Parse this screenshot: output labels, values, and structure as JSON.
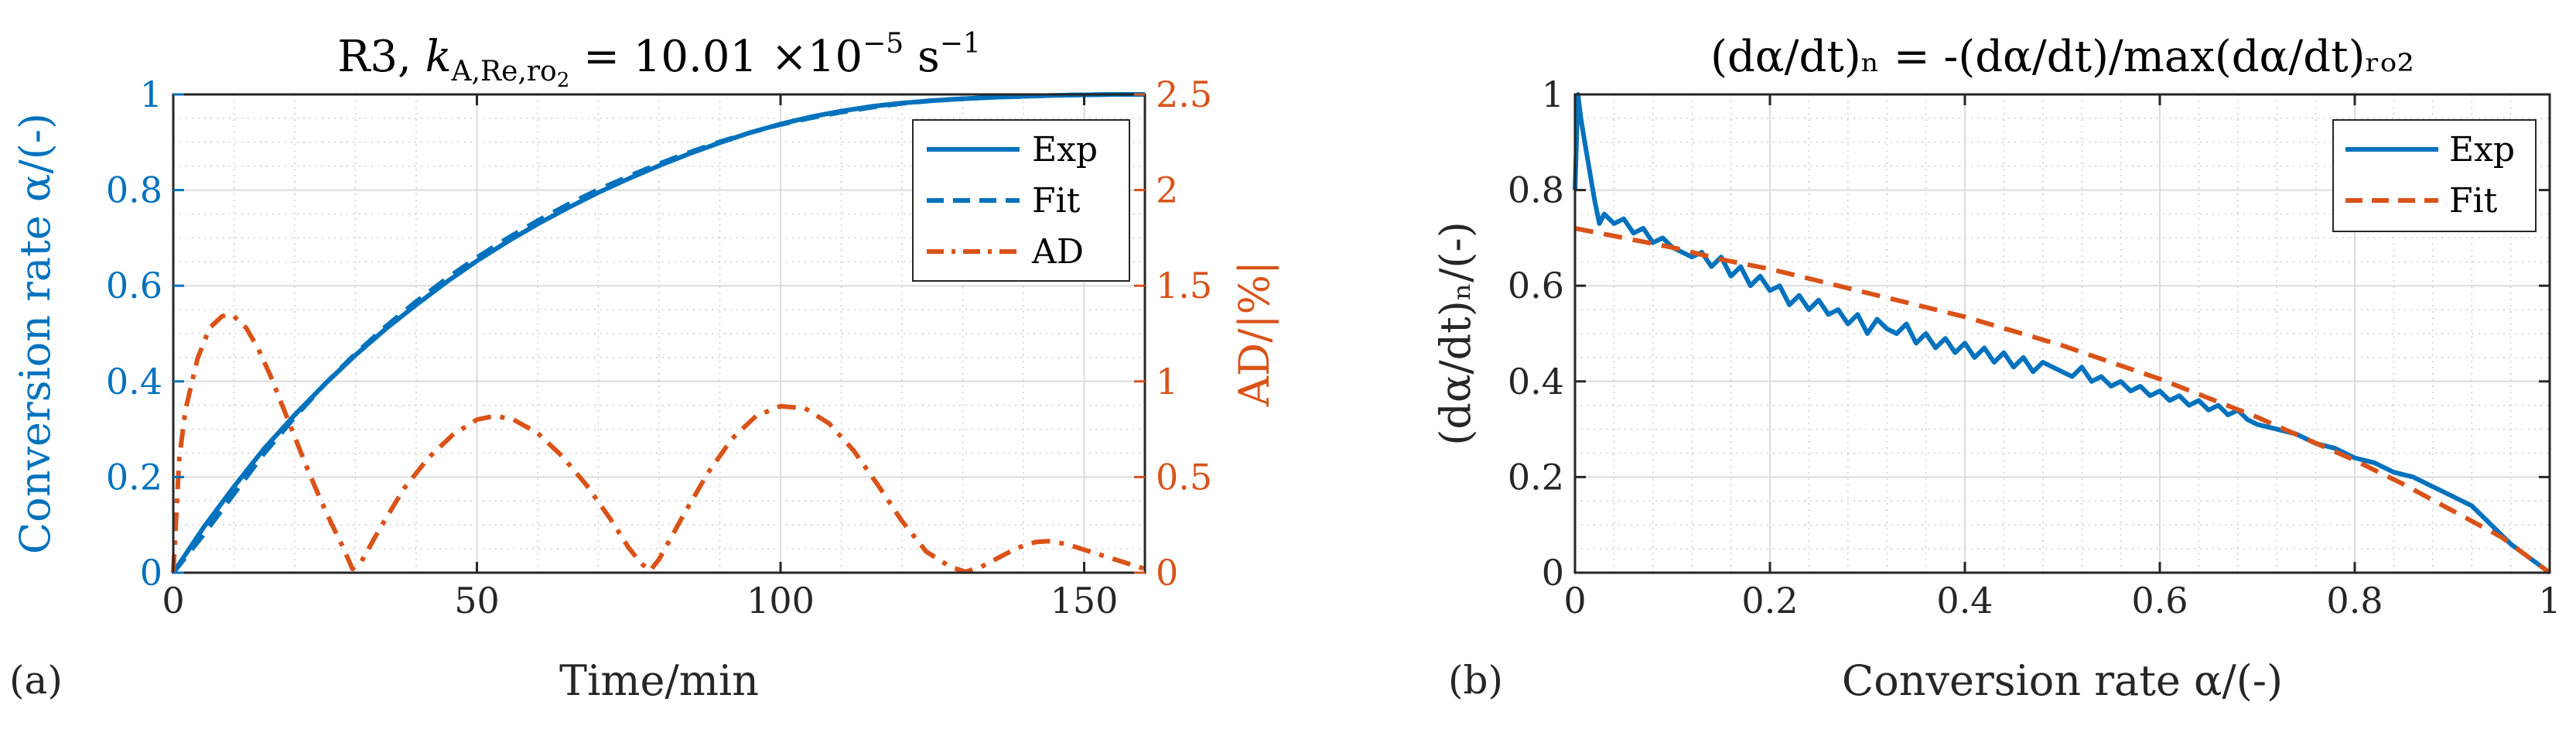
{
  "colors": {
    "blue": "#0072BD",
    "orange": "#D95319",
    "text": "#262626",
    "grid": "#c8c8c8"
  },
  "chart_data": [
    {
      "type": "line",
      "panel_label": "(a)",
      "title_parts": [
        "R3, ",
        "k",
        "A,Re,ro",
        "2",
        " = 10.01 ×10",
        "−5",
        " s",
        "−1"
      ],
      "xlabel": "Time/min",
      "ylabel_left": "Conversion rate α/(-)",
      "ylabel_right": "AD/|%|",
      "xlim": [
        0,
        160
      ],
      "ylim_left": [
        0,
        1
      ],
      "ylim_right": [
        0,
        2.5
      ],
      "xticks": [
        0,
        50,
        100,
        150
      ],
      "xtick_labels": [
        "0",
        "50",
        "100",
        "150"
      ],
      "yticks_left": [
        0,
        0.2,
        0.4,
        0.6,
        0.8,
        1
      ],
      "ytick_labels_left": [
        "0",
        "0.2",
        "0.4",
        "0.6",
        "0.8",
        "1"
      ],
      "yticks_right": [
        0,
        0.5,
        1,
        1.5,
        2,
        2.5
      ],
      "ytick_labels_right": [
        "0",
        "0.5",
        "1",
        "1.5",
        "2",
        "2.5"
      ],
      "grid": true,
      "legend_position": "top-right",
      "series": [
        {
          "name": "Exp",
          "axis": "left",
          "style": "solid",
          "color": "#0072BD",
          "x": [
            0,
            5,
            10,
            15,
            20,
            25,
            30,
            35,
            40,
            45,
            50,
            55,
            60,
            65,
            70,
            75,
            80,
            85,
            90,
            95,
            100,
            105,
            110,
            115,
            120,
            125,
            130,
            135,
            140,
            145,
            150,
            155,
            160
          ],
          "y": [
            0,
            0.095,
            0.18,
            0.26,
            0.33,
            0.395,
            0.455,
            0.51,
            0.56,
            0.608,
            0.652,
            0.692,
            0.729,
            0.763,
            0.795,
            0.824,
            0.851,
            0.876,
            0.899,
            0.92,
            0.938,
            0.953,
            0.965,
            0.975,
            0.982,
            0.987,
            0.991,
            0.994,
            0.996,
            0.998,
            0.999,
            1.0,
            1.0
          ]
        },
        {
          "name": "Fit",
          "axis": "left",
          "style": "dashed",
          "color": "#0072BD",
          "x": [
            0,
            5,
            10,
            15,
            20,
            25,
            30,
            35,
            40,
            45,
            50,
            55,
            60,
            65,
            70,
            75,
            80,
            85,
            90,
            95,
            100,
            105,
            110,
            115,
            120,
            125,
            130,
            135,
            140,
            145,
            150,
            155,
            160
          ],
          "y": [
            0,
            0.08,
            0.165,
            0.25,
            0.325,
            0.395,
            0.458,
            0.515,
            0.567,
            0.615,
            0.659,
            0.699,
            0.736,
            0.77,
            0.801,
            0.829,
            0.855,
            0.879,
            0.901,
            0.92,
            0.937,
            0.951,
            0.963,
            0.973,
            0.981,
            0.987,
            0.991,
            0.994,
            0.996,
            0.998,
            0.999,
            1.0,
            1.0
          ]
        },
        {
          "name": "AD",
          "axis": "right",
          "style": "dashdot",
          "color": "#D95319",
          "x": [
            0,
            1,
            2,
            4,
            6,
            8,
            9,
            10,
            12,
            14,
            16,
            18,
            20,
            22,
            24,
            26,
            28,
            29.5,
            31,
            34,
            38,
            42,
            46,
            50,
            53,
            56,
            60,
            64,
            68,
            72,
            75,
            77,
            78.5,
            80,
            84,
            88,
            92,
            96,
            100,
            104,
            108,
            112,
            116,
            120,
            124,
            128,
            130.5,
            133,
            136,
            139,
            142,
            144,
            147,
            150,
            154,
            158,
            160
          ],
          "y": [
            0,
            0.6,
            0.85,
            1.12,
            1.28,
            1.34,
            1.35,
            1.34,
            1.28,
            1.17,
            1.03,
            0.87,
            0.71,
            0.55,
            0.4,
            0.26,
            0.13,
            0.02,
            0.06,
            0.23,
            0.44,
            0.6,
            0.72,
            0.8,
            0.82,
            0.8,
            0.73,
            0.61,
            0.46,
            0.28,
            0.13,
            0.05,
            0.01,
            0.07,
            0.3,
            0.52,
            0.7,
            0.82,
            0.87,
            0.86,
            0.78,
            0.64,
            0.46,
            0.27,
            0.11,
            0.03,
            0.005,
            0.03,
            0.08,
            0.13,
            0.16,
            0.165,
            0.15,
            0.12,
            0.08,
            0.04,
            0.02
          ]
        }
      ]
    },
    {
      "type": "line",
      "panel_label": "(b)",
      "title": "(dα/dt)ₙ = -(dα/dt)/max(dα/dt)ᵣₒ₂",
      "xlabel": "Conversion rate α/(-)",
      "ylabel": "(dα/dt)ₙ/(-)",
      "xlim": [
        0,
        1
      ],
      "ylim": [
        0,
        1
      ],
      "xticks": [
        0,
        0.2,
        0.4,
        0.6,
        0.8,
        1
      ],
      "xtick_labels": [
        "0",
        "0.2",
        "0.4",
        "0.6",
        "0.8",
        "1"
      ],
      "yticks": [
        0,
        0.2,
        0.4,
        0.6,
        0.8,
        1
      ],
      "ytick_labels": [
        "0",
        "0.2",
        "0.4",
        "0.6",
        "0.8",
        "1"
      ],
      "grid": true,
      "legend_position": "top-right",
      "series": [
        {
          "name": "Exp",
          "style": "solid",
          "color": "#0072BD",
          "x": [
            0,
            0.003,
            0.006,
            0.01,
            0.015,
            0.02,
            0.025,
            0.03,
            0.04,
            0.05,
            0.06,
            0.07,
            0.08,
            0.09,
            0.1,
            0.11,
            0.12,
            0.13,
            0.14,
            0.15,
            0.16,
            0.17,
            0.18,
            0.19,
            0.2,
            0.21,
            0.22,
            0.23,
            0.24,
            0.25,
            0.26,
            0.27,
            0.28,
            0.29,
            0.3,
            0.31,
            0.32,
            0.33,
            0.34,
            0.35,
            0.36,
            0.37,
            0.38,
            0.39,
            0.4,
            0.41,
            0.42,
            0.43,
            0.44,
            0.45,
            0.46,
            0.47,
            0.48,
            0.49,
            0.5,
            0.51,
            0.52,
            0.53,
            0.54,
            0.55,
            0.56,
            0.57,
            0.58,
            0.59,
            0.6,
            0.61,
            0.62,
            0.63,
            0.64,
            0.65,
            0.66,
            0.67,
            0.68,
            0.69,
            0.7,
            0.72,
            0.74,
            0.76,
            0.78,
            0.8,
            0.82,
            0.84,
            0.86,
            0.88,
            0.9,
            0.91,
            0.92,
            0.93,
            0.94,
            0.95,
            0.96,
            0.97,
            0.98,
            0.99,
            1.0
          ],
          "y": [
            0.8,
            1.0,
            0.95,
            0.9,
            0.84,
            0.78,
            0.73,
            0.75,
            0.73,
            0.74,
            0.71,
            0.72,
            0.69,
            0.7,
            0.68,
            0.67,
            0.66,
            0.67,
            0.64,
            0.66,
            0.62,
            0.64,
            0.6,
            0.62,
            0.59,
            0.6,
            0.56,
            0.58,
            0.55,
            0.57,
            0.54,
            0.55,
            0.52,
            0.54,
            0.5,
            0.53,
            0.51,
            0.5,
            0.52,
            0.48,
            0.5,
            0.47,
            0.49,
            0.46,
            0.48,
            0.45,
            0.47,
            0.44,
            0.46,
            0.43,
            0.45,
            0.42,
            0.44,
            0.43,
            0.42,
            0.41,
            0.43,
            0.4,
            0.41,
            0.39,
            0.4,
            0.38,
            0.39,
            0.37,
            0.38,
            0.36,
            0.37,
            0.35,
            0.36,
            0.34,
            0.35,
            0.33,
            0.34,
            0.32,
            0.31,
            0.3,
            0.29,
            0.27,
            0.26,
            0.24,
            0.23,
            0.21,
            0.2,
            0.18,
            0.16,
            0.15,
            0.14,
            0.12,
            0.1,
            0.08,
            0.06,
            0.045,
            0.03,
            0.015,
            0.0
          ]
        },
        {
          "name": "Fit",
          "style": "dashed",
          "color": "#D95319",
          "x": [
            0,
            0.05,
            0.1,
            0.15,
            0.2,
            0.25,
            0.3,
            0.35,
            0.4,
            0.45,
            0.5,
            0.55,
            0.6,
            0.65,
            0.7,
            0.75,
            0.8,
            0.85,
            0.9,
            0.95,
            1.0
          ],
          "y": [
            0.72,
            0.7,
            0.68,
            0.655,
            0.635,
            0.61,
            0.585,
            0.56,
            0.535,
            0.505,
            0.475,
            0.44,
            0.405,
            0.365,
            0.325,
            0.28,
            0.235,
            0.185,
            0.13,
            0.075,
            0.0
          ]
        }
      ]
    }
  ]
}
